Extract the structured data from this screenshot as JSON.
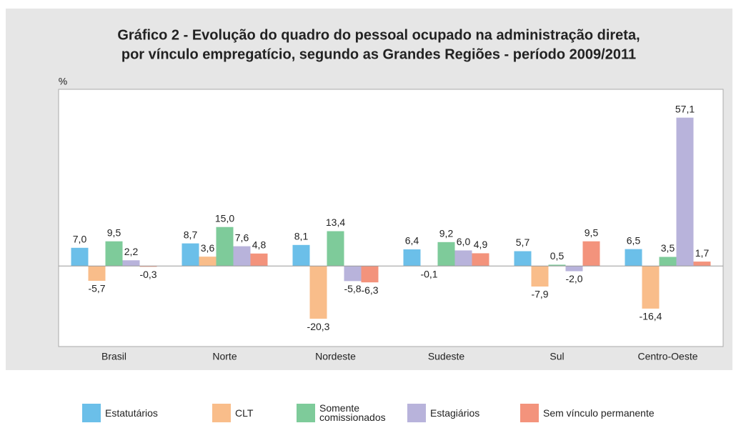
{
  "chart_data": {
    "type": "bar",
    "title": "Gráfico 2 - Evolução do quadro do pessoal ocupado na administração direta,",
    "subtitle": "por vínculo empregatício, segundo as Grandes Regiões - período 2009/2011",
    "y_label": "%",
    "categories": [
      "Brasil",
      "Norte",
      "Nordeste",
      "Sudeste",
      "Sul",
      "Centro-Oeste"
    ],
    "ylim": [
      -31,
      68
    ],
    "series": [
      {
        "name": "Estatutários",
        "color": "#6bbfe9",
        "values": [
          7.0,
          8.7,
          8.1,
          6.4,
          5.7,
          6.5
        ],
        "value_labels": [
          "7,0",
          "8,7",
          "8,1",
          "6,4",
          "5,7",
          "6,5"
        ]
      },
      {
        "name": "CLT",
        "color": "#f9bd8a",
        "values": [
          -5.7,
          3.6,
          -20.3,
          -0.1,
          -7.9,
          -16.4
        ],
        "value_labels": [
          "-5,7",
          "3,6",
          "-20,3",
          "-0,1",
          "-7,9",
          "-16,4"
        ]
      },
      {
        "name": "Somente comissionados",
        "color": "#7ecb9a",
        "values": [
          9.5,
          15.0,
          13.4,
          9.2,
          0.5,
          3.5
        ],
        "value_labels": [
          "9,5",
          "15,0",
          "13,4",
          "9,2",
          "0,5",
          "3,5"
        ]
      },
      {
        "name": "Estagiários",
        "color": "#b8b3db",
        "values": [
          2.2,
          7.6,
          -5.8,
          6.0,
          -2.0,
          57.1
        ],
        "value_labels": [
          "2,2",
          "7,6",
          "-5,8",
          "6,0",
          "-2,0",
          "57,1"
        ]
      },
      {
        "name": "Sem vínculo permanente",
        "color": "#f3937c",
        "values": [
          -0.3,
          4.8,
          -6.3,
          4.9,
          9.5,
          1.7
        ],
        "value_labels": [
          "-0,3",
          "4,8",
          "-6,3",
          "4,9",
          "9,5",
          "1,7"
        ]
      }
    ]
  }
}
